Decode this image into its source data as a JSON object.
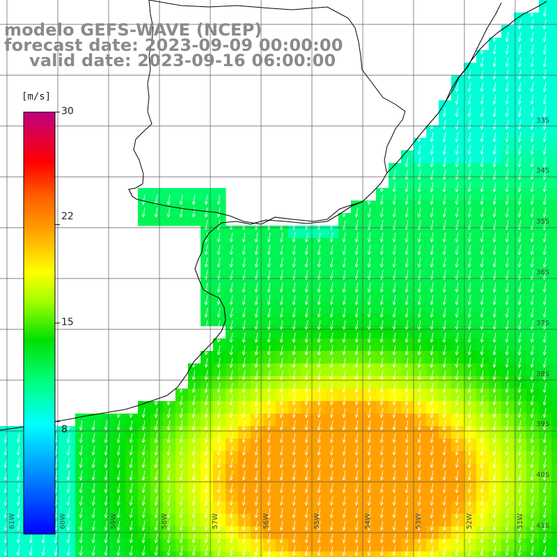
{
  "title": {
    "line1": "modelo GEFS-WAVE (NCEP)",
    "line2": "forecast date: 2023-09-09 00:00:00",
    "line3": "valid date: 2023-09-16 06:00:00"
  },
  "colorbar": {
    "units": "[m/s]",
    "ticks": [
      {
        "label": "30",
        "value": 30
      },
      {
        "label": "22",
        "value": 22
      },
      {
        "label": "15",
        "value": 15
      },
      {
        "label": "8",
        "value": 8
      }
    ],
    "range": [
      0,
      30
    ],
    "colors": [
      "#0000ff",
      "#0080ff",
      "#00ffff",
      "#00ff80",
      "#00e000",
      "#a0ff00",
      "#ffff00",
      "#ffa000",
      "#ff6000",
      "#ff0000",
      "#c00080"
    ]
  },
  "axes": {
    "lat_labels": [
      "33S",
      "34S",
      "35S",
      "36S",
      "37S",
      "38S",
      "39S",
      "40S",
      "41S"
    ],
    "lon_labels": [
      "61W",
      "60W",
      "59W",
      "58W",
      "57W",
      "56W",
      "55W",
      "54W",
      "53W",
      "52W",
      "51W"
    ]
  },
  "map": {
    "variable": "wind speed",
    "lat_range": [
      -41.3,
      -30.9
    ],
    "lon_range": [
      -61.3,
      -50.4
    ],
    "arrow_direction": "south-southwest"
  }
}
